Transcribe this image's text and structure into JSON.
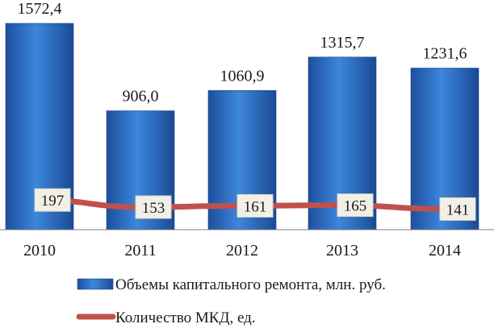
{
  "chart_data": {
    "type": "bar",
    "categories": [
      "2010",
      "2011",
      "2012",
      "2013",
      "2014"
    ],
    "series": [
      {
        "name": "Объемы капитального ремонта, млн. руб.",
        "kind": "bar",
        "color": "#2f73c9",
        "values": [
          1572.4,
          906.0,
          1060.9,
          1315.7,
          1231.6
        ],
        "labels": [
          "1572,4",
          "906,0",
          "1060,9",
          "1315,7",
          "1231,6"
        ]
      },
      {
        "name": "Количество МКД, ед.",
        "kind": "line",
        "color": "#c0504d",
        "values": [
          197,
          153,
          161,
          165,
          141
        ],
        "labels": [
          "197",
          "153",
          "161",
          "165",
          "141"
        ]
      }
    ],
    "title": "",
    "xlabel": "",
    "ylabel": "",
    "grid": false,
    "legend_position": "bottom"
  }
}
